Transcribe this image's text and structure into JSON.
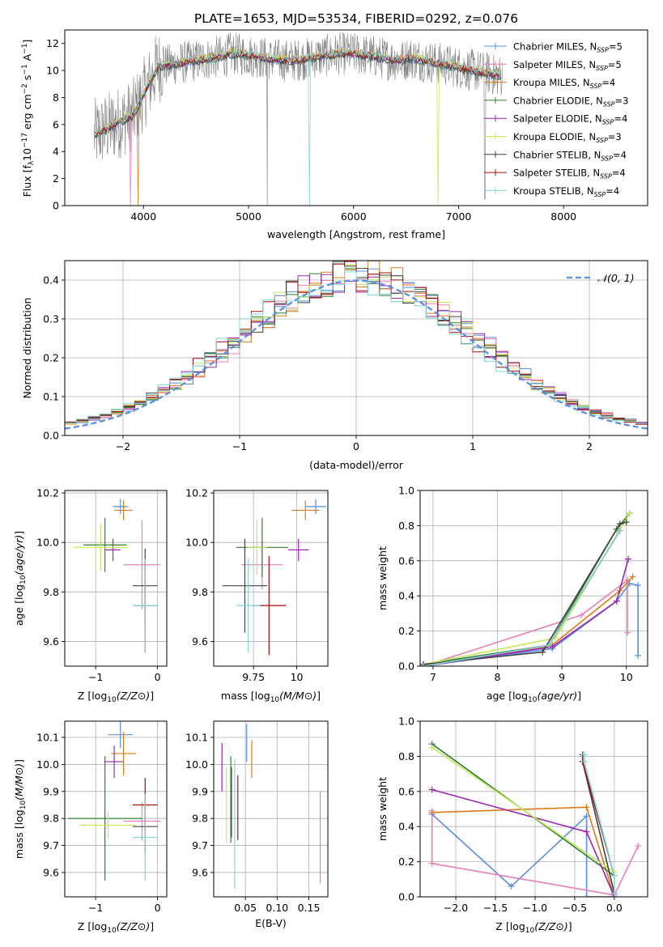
{
  "figure_title": "PLATE=1653, MJD=53534, FIBERID=0292, z=0.076",
  "colors": [
    "#5b8fe0",
    "#e87fb8",
    "#e07b1a",
    "#2e7d32",
    "#9c27b0",
    "#c6e85a",
    "#424242",
    "#a01010",
    "#7fd8d8"
  ],
  "chart_data": [
    {
      "type": "line",
      "title": "PLATE=1653, MJD=53534, FIBERID=0292, z=0.076",
      "xlabel": "wavelength [Angstrom, rest frame]",
      "ylabel_main": "Flux [f",
      "ylabel_sub": "λ",
      "ylabel_mid": "10",
      "ylabel_sup1": "−17",
      "ylabel_rest": " erg cm",
      "ylabel_sup2": "−2",
      "ylabel_rest2": " s",
      "ylabel_sup3": "−1",
      "ylabel_rest3": " A",
      "ylabel_sup4": "−1",
      "ylabel_end": "]",
      "xlim": [
        3250,
        8800
      ],
      "ylim": [
        0,
        13
      ],
      "xticks": [
        4000,
        5000,
        6000,
        7000,
        8000
      ],
      "yticks": [
        0,
        2,
        4,
        6,
        8,
        10,
        12
      ],
      "grid": false,
      "legend_position": "right",
      "data_range": [
        3530,
        7420
      ],
      "series": [
        {
          "name": "Chabrier MILES",
          "nssp": "5"
        },
        {
          "name": "Salpeter MILES",
          "nssp": "5"
        },
        {
          "name": "Kroupa MILES",
          "nssp": "4"
        },
        {
          "name": "Chabrier ELODIE",
          "nssp": "3"
        },
        {
          "name": "Salpeter ELODIE",
          "nssp": "4"
        },
        {
          "name": "Kroupa ELODIE",
          "nssp": "3"
        },
        {
          "name": "Chabrier STELIB",
          "nssp": "4"
        },
        {
          "name": "Salpeter STELIB",
          "nssp": "4"
        },
        {
          "name": "Kroupa STELIB",
          "nssp": "4"
        }
      ],
      "nssp_prefix": ", N",
      "nssp_sub": "SSP",
      "nssp_eq": "="
    },
    {
      "type": "histogram",
      "xlabel": "(data-model)/error",
      "ylabel": "Normed distribution",
      "xlim": [
        -2.5,
        2.5
      ],
      "ylim": [
        0,
        0.45
      ],
      "xticks": [
        -2,
        -1,
        0,
        1,
        2
      ],
      "yticks": [
        0.0,
        0.1,
        0.2,
        0.3,
        0.4
      ],
      "grid": true,
      "legend_position": "top-right",
      "legend_label": "𝒩(0, 1)",
      "bin_width": 0.1
    },
    {
      "type": "scatter",
      "xlabel": "Z [log10(Z/Z⊙)]",
      "ylabel": "age  [log10(age/yr)]",
      "xlim": [
        -1.5,
        0.15
      ],
      "ylim": [
        9.5,
        10.21
      ],
      "xticks": [
        -1,
        0
      ],
      "yticks": [
        9.6,
        9.8,
        10.0,
        10.2
      ],
      "grid": true,
      "points": [
        {
          "x": -0.6,
          "y": 10.145,
          "xerr": 0.12,
          "yerr": 0.03
        },
        {
          "x": -0.25,
          "y": 9.91,
          "xerr": 0.3,
          "yerr": 0.18
        },
        {
          "x": -0.55,
          "y": 10.13,
          "xerr": 0.15,
          "yerr": 0.04
        },
        {
          "x": -0.85,
          "y": 9.99,
          "xerr": 0.35,
          "yerr": 0.11
        },
        {
          "x": -0.72,
          "y": 9.97,
          "xerr": 0.12,
          "yerr": 0.045
        },
        {
          "x": -0.92,
          "y": 9.98,
          "xerr": 0.45,
          "yerr": 0.095
        },
        {
          "x": -0.2,
          "y": 9.825,
          "xerr": 0.2,
          "yerr": 0.15
        },
        {
          "x": -0.2,
          "y": 9.745,
          "xerr": 0.2,
          "yerr": 0.19
        },
        {
          "x": -0.2,
          "y": 9.745,
          "xerr": 0.2,
          "yerr": 0.19
        }
      ]
    },
    {
      "type": "scatter",
      "xlabel": "mass [log10(M/M⊙)]",
      "ylabel": "",
      "xlim": [
        9.52,
        10.18
      ],
      "ylim": [
        9.5,
        10.21
      ],
      "xticks": [
        9.75,
        10.0
      ],
      "yticks": [
        9.6,
        9.8,
        10.0,
        10.2
      ],
      "grid": true,
      "points": [
        {
          "x": 10.11,
          "y": 10.145,
          "xerr": 0.06,
          "yerr": 0.03
        },
        {
          "x": 9.8,
          "y": 9.91,
          "xerr": 0.12,
          "yerr": 0.1
        },
        {
          "x": 10.05,
          "y": 10.13,
          "xerr": 0.08,
          "yerr": 0.04
        },
        {
          "x": 9.8,
          "y": 9.98,
          "xerr": 0.15,
          "yerr": 0.12
        },
        {
          "x": 10.01,
          "y": 9.97,
          "xerr": 0.06,
          "yerr": 0.045
        },
        {
          "x": 9.77,
          "y": 9.98,
          "xerr": 0.06,
          "yerr": 0.11
        },
        {
          "x": 9.7,
          "y": 9.825,
          "xerr": 0.13,
          "yerr": 0.19
        },
        {
          "x": 9.84,
          "y": 9.745,
          "xerr": 0.1,
          "yerr": 0.2
        },
        {
          "x": 9.72,
          "y": 9.745,
          "xerr": 0.07,
          "yerr": 0.19
        }
      ]
    },
    {
      "type": "line",
      "xlabel": "age  [log10(age/yr)]",
      "ylabel": "mass weight",
      "xlim": [
        6.8,
        10.33
      ],
      "ylim": [
        0,
        1.0
      ],
      "xticks": [
        7,
        8,
        9,
        10
      ],
      "yticks": [
        0.0,
        0.2,
        0.4,
        0.6,
        0.8,
        1.0
      ],
      "grid": true,
      "series": [
        {
          "x": [
            6.85,
            8.85,
            9.85,
            10.05,
            10.18,
            10.18
          ],
          "y": [
            0.0,
            0.1,
            0.37,
            0.47,
            0.46,
            0.06
          ]
        },
        {
          "x": [
            6.85,
            9.3,
            10.02,
            10.02
          ],
          "y": [
            0.0,
            0.29,
            0.49,
            0.19
          ]
        },
        {
          "x": [
            6.85,
            8.85,
            9.9,
            10.1
          ],
          "y": [
            0.0,
            0.12,
            0.43,
            0.51
          ]
        },
        {
          "x": [
            6.85,
            8.8,
            9.85,
            10.05
          ],
          "y": [
            0.01,
            0.12,
            0.78,
            0.87
          ]
        },
        {
          "x": [
            6.85,
            8.85,
            9.85,
            10.03
          ],
          "y": [
            0.0,
            0.11,
            0.37,
            0.61
          ]
        },
        {
          "x": [
            6.85,
            8.9,
            10.05
          ],
          "y": [
            0.01,
            0.16,
            0.87
          ]
        },
        {
          "x": [
            6.85,
            8.7,
            9.9,
            10.0
          ],
          "y": [
            0.01,
            0.08,
            0.81,
            0.82
          ]
        },
        {
          "x": [
            6.85,
            8.8,
            9.9
          ],
          "y": [
            0.0,
            0.12,
            0.77
          ]
        },
        {
          "x": [
            6.85,
            8.8,
            9.9
          ],
          "y": [
            0.0,
            0.12,
            0.77
          ]
        }
      ]
    },
    {
      "type": "scatter",
      "xlabel": "Z [log10(Z/Z⊙)]",
      "ylabel": "mass [log10(M/M⊙)]",
      "xlim": [
        -1.5,
        0.15
      ],
      "ylim": [
        9.51,
        10.16
      ],
      "xticks": [
        -1,
        0
      ],
      "yticks": [
        9.6,
        9.7,
        9.8,
        9.9,
        10.0,
        10.1
      ],
      "grid": true,
      "points": [
        {
          "x": -0.6,
          "y": 10.11,
          "xerr": 0.2,
          "yerr": 0.05
        },
        {
          "x": -0.25,
          "y": 9.79,
          "xerr": 0.3,
          "yerr": 0.07
        },
        {
          "x": -0.55,
          "y": 10.04,
          "xerr": 0.2,
          "yerr": 0.08
        },
        {
          "x": -0.85,
          "y": 9.8,
          "xerr": 0.6,
          "yerr": 0.23
        },
        {
          "x": -0.7,
          "y": 10.01,
          "xerr": 0.15,
          "yerr": 0.06
        },
        {
          "x": -0.8,
          "y": 9.775,
          "xerr": 0.45,
          "yerr": 0.05
        },
        {
          "x": -0.2,
          "y": 9.77,
          "xerr": 0.2,
          "yerr": 0.1
        },
        {
          "x": -0.2,
          "y": 9.85,
          "xerr": 0.2,
          "yerr": 0.1
        },
        {
          "x": -0.2,
          "y": 9.73,
          "xerr": 0.2,
          "yerr": 0.16
        }
      ]
    },
    {
      "type": "scatter",
      "xlabel": "E(B-V)",
      "ylabel": "",
      "xlim": [
        0.0,
        0.18
      ],
      "ylim": [
        9.51,
        10.16
      ],
      "xticks": [
        0.05,
        0.1,
        0.15
      ],
      "xtick_labels": [
        "0.05",
        "0.10",
        "0.15"
      ],
      "yticks": [
        9.6,
        9.7,
        9.8,
        9.9,
        10.0,
        10.1
      ],
      "grid": true,
      "points": [
        {
          "x": 0.052,
          "y": 10.08,
          "xerr": 0,
          "yerr": 0.07
        },
        {
          "x": 0.168,
          "y": 9.73,
          "xerr": 0,
          "yerr": 0.17
        },
        {
          "x": 0.06,
          "y": 10.02,
          "xerr": 0,
          "yerr": 0.07
        },
        {
          "x": 0.027,
          "y": 9.87,
          "xerr": 0,
          "yerr": 0.16
        },
        {
          "x": 0.013,
          "y": 9.99,
          "xerr": 0,
          "yerr": 0.09
        },
        {
          "x": 0.02,
          "y": 9.85,
          "xerr": 0,
          "yerr": 0.14
        },
        {
          "x": 0.028,
          "y": 9.86,
          "xerr": 0,
          "yerr": 0.13
        },
        {
          "x": 0.038,
          "y": 9.84,
          "xerr": 0,
          "yerr": 0.12
        },
        {
          "x": 0.033,
          "y": 9.78,
          "xerr": 0,
          "yerr": 0.24
        }
      ]
    },
    {
      "type": "line",
      "xlabel": "Z [log10(Z/Z⊙)]",
      "ylabel": "mass weight",
      "xlim": [
        -2.45,
        0.42
      ],
      "ylim": [
        0,
        1.0
      ],
      "xticks": [
        -2.0,
        -1.5,
        -1.0,
        -0.5,
        0.0
      ],
      "xtick_labels": [
        "−2.0",
        "−1.5",
        "−1.0",
        "−0.5",
        "0.0"
      ],
      "yticks": [
        0.0,
        0.2,
        0.4,
        0.6,
        0.8,
        1.0
      ],
      "grid": true,
      "series": [
        {
          "x": [
            -2.3,
            -1.3,
            -0.35,
            -0.35,
            0.0
          ],
          "y": [
            0.47,
            0.06,
            0.46,
            0.0,
            0.0
          ]
        },
        {
          "x": [
            -2.3,
            -2.3,
            0.0,
            0.3
          ],
          "y": [
            0.49,
            0.19,
            0.01,
            0.29
          ]
        },
        {
          "x": [
            -2.3,
            -0.35,
            0.0
          ],
          "y": [
            0.48,
            0.51,
            0.0
          ]
        },
        {
          "x": [
            -2.3,
            0.0
          ],
          "y": [
            0.87,
            0.12
          ]
        },
        {
          "x": [
            -2.3,
            -0.35,
            0.0
          ],
          "y": [
            0.61,
            0.37,
            0.0
          ]
        },
        {
          "x": [
            -2.3,
            0.0
          ],
          "y": [
            0.85,
            0.14
          ]
        },
        {
          "x": [
            -0.4,
            -0.4,
            0.0
          ],
          "y": [
            0.81,
            0.77,
            0.02
          ]
        },
        {
          "x": [
            -0.4,
            0.0
          ],
          "y": [
            0.77,
            0.12
          ]
        },
        {
          "x": [
            -0.38,
            -0.38,
            0.0,
            0.0
          ],
          "y": [
            0.81,
            0.77,
            0.12,
            0.02
          ]
        }
      ]
    }
  ]
}
